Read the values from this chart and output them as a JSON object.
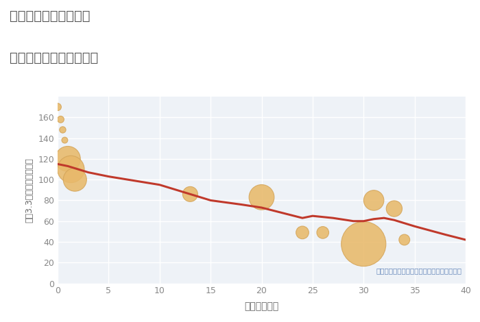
{
  "title_line1": "愛知県日進市梅森町の",
  "title_line2": "築年数別中古戸建て価格",
  "xlabel": "築年数（年）",
  "ylabel": "坪（3.3㎡）単価（万円）",
  "annotation": "円の大きさは、取引のあった物件面積を示す",
  "background_color": "#ffffff",
  "plot_bg_color": "#eef2f7",
  "grid_color": "#ffffff",
  "line_color": "#c0392b",
  "bubble_color": "#e8b96a",
  "bubble_edge_color": "#d4a55a",
  "xlim": [
    0,
    40
  ],
  "ylim": [
    0,
    180
  ],
  "xticks": [
    0,
    5,
    10,
    15,
    20,
    25,
    30,
    35,
    40
  ],
  "yticks": [
    0,
    20,
    40,
    60,
    80,
    100,
    120,
    140,
    160
  ],
  "line_x": [
    0,
    1,
    2,
    3,
    5,
    10,
    13,
    15,
    18,
    20,
    22,
    24,
    25,
    27,
    29,
    30,
    31,
    32,
    33,
    35,
    38,
    40
  ],
  "line_y": [
    115,
    113,
    110,
    107,
    103,
    95,
    86,
    80,
    76,
    73,
    68,
    63,
    65,
    63,
    60,
    60,
    62,
    63,
    61,
    55,
    47,
    42
  ],
  "bubbles_x": [
    0,
    0.3,
    0.5,
    0.7,
    1.0,
    1.3,
    1.7,
    13,
    20,
    24,
    26,
    30,
    31,
    33,
    34
  ],
  "bubbles_y": [
    170,
    158,
    148,
    138,
    120,
    110,
    100,
    86,
    83,
    49,
    49,
    38,
    80,
    72,
    42
  ],
  "bubbles_size": [
    60,
    50,
    45,
    40,
    700,
    800,
    600,
    250,
    700,
    180,
    160,
    2200,
    450,
    280,
    130
  ],
  "title_color": "#555555",
  "tick_color": "#888888",
  "label_color": "#666666",
  "annot_color": "#6688bb"
}
